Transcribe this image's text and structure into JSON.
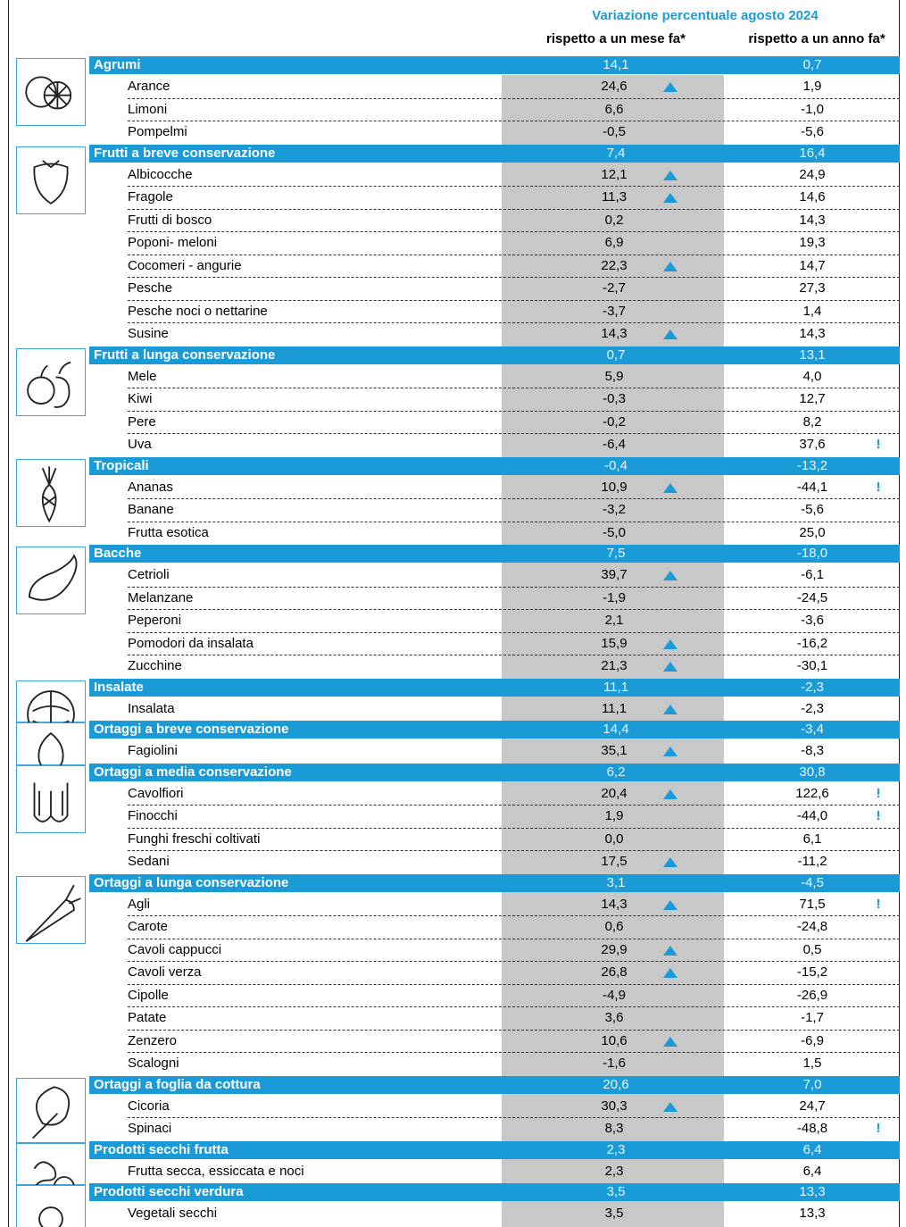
{
  "header": {
    "title": "Variazione percentuale agosto 2024",
    "col_month": "rispetto a un mese fa*",
    "col_year": "rispetto a un anno fa*"
  },
  "groups": [
    {
      "name": "Agrumi",
      "month": "14,1",
      "year": "0,7",
      "items": [
        {
          "name": "Arance",
          "month": "24,6",
          "up": true,
          "year": "1,9"
        },
        {
          "name": "Limoni",
          "month": "6,6",
          "year": "-1,0"
        },
        {
          "name": "Pompelmi",
          "month": "-0,5",
          "year": "-5,6"
        }
      ]
    },
    {
      "name": "Frutti a breve conservazione",
      "month": "7,4",
      "year": "16,4",
      "items": [
        {
          "name": "Albicocche",
          "month": "12,1",
          "up": true,
          "year": "24,9"
        },
        {
          "name": "Fragole",
          "month": "11,3",
          "up": true,
          "year": "14,6"
        },
        {
          "name": "Frutti di bosco",
          "month": "0,2",
          "year": "14,3"
        },
        {
          "name": "Poponi- meloni",
          "month": "6,9",
          "year": "19,3"
        },
        {
          "name": "Cocomeri - angurie",
          "month": "22,3",
          "up": true,
          "year": "14,7"
        },
        {
          "name": "Pesche",
          "month": "-2,7",
          "year": "27,3"
        },
        {
          "name": "Pesche noci o nettarine",
          "month": "-3,7",
          "year": "1,4"
        },
        {
          "name": "Susine",
          "month": "14,3",
          "up": true,
          "year": "14,3"
        }
      ]
    },
    {
      "name": "Frutti a lunga conservazione",
      "month": "0,7",
      "year": "13,1",
      "items": [
        {
          "name": "Mele",
          "month": "5,9",
          "year": "4,0"
        },
        {
          "name": "Kiwi",
          "month": "-0,3",
          "year": "12,7"
        },
        {
          "name": "Pere",
          "month": "-0,2",
          "year": "8,2"
        },
        {
          "name": "Uva",
          "month": "-6,4",
          "year": "37,6",
          "alert": "!"
        }
      ]
    },
    {
      "name": "Tropicali",
      "month": "-0,4",
      "year": "-13,2",
      "items": [
        {
          "name": "Ananas",
          "month": "10,9",
          "up": true,
          "year": "-44,1",
          "alert": "!"
        },
        {
          "name": "Banane",
          "month": "-3,2",
          "year": "-5,6"
        },
        {
          "name": "Frutta esotica",
          "month": "-5,0",
          "year": "25,0"
        }
      ]
    },
    {
      "name": "Bacche",
      "month": "7,5",
      "year": "-18,0",
      "items": [
        {
          "name": "Cetrioli",
          "month": "39,7",
          "up": true,
          "year": "-6,1"
        },
        {
          "name": "Melanzane",
          "month": "-1,9",
          "year": "-24,5"
        },
        {
          "name": "Peperoni",
          "month": "2,1",
          "year": "-3,6"
        },
        {
          "name": "Pomodori da insalata",
          "month": "15,9",
          "up": true,
          "year": "-16,2"
        },
        {
          "name": "Zucchine",
          "month": "21,3",
          "up": true,
          "year": "-30,1"
        }
      ]
    },
    {
      "name": "Insalate",
      "month": "11,1",
      "year": "-2,3",
      "items": [
        {
          "name": "Insalata",
          "month": "11,1",
          "up": true,
          "year": "-2,3"
        }
      ]
    },
    {
      "name": "Ortaggi a breve conservazione",
      "month": "14,4",
      "year": "-3,4",
      "items": [
        {
          "name": "Fagiolini",
          "month": "35,1",
          "up": true,
          "year": "-8,3"
        }
      ]
    },
    {
      "name": "Ortaggi a media conservazione",
      "month": "6,2",
      "year": "30,8",
      "items": [
        {
          "name": "Cavolfiori",
          "month": "20,4",
          "up": true,
          "year": "122,6",
          "alert": "!"
        },
        {
          "name": "Finocchi",
          "month": "1,9",
          "year": "-44,0",
          "alert": "!"
        },
        {
          "name": "Funghi freschi coltivati",
          "month": "0,0",
          "year": "6,1"
        },
        {
          "name": "Sedani",
          "month": "17,5",
          "up": true,
          "year": "-11,2"
        }
      ]
    },
    {
      "name": "Ortaggi a lunga conservazione",
      "month": "3,1",
      "year": "-4,5",
      "items": [
        {
          "name": "Agli",
          "month": "14,3",
          "up": true,
          "year": "71,5",
          "alert": "!"
        },
        {
          "name": "Carote",
          "month": "0,6",
          "year": "-24,8"
        },
        {
          "name": "Cavoli cappucci",
          "month": "29,9",
          "up": true,
          "year": "0,5"
        },
        {
          "name": "Cavoli verza",
          "month": "26,8",
          "up": true,
          "year": "-15,2"
        },
        {
          "name": "Cipolle",
          "month": "-4,9",
          "year": "-26,9"
        },
        {
          "name": "Patate",
          "month": "3,6",
          "year": "-1,7"
        },
        {
          "name": "Zenzero",
          "month": "10,6",
          "up": true,
          "year": "-6,9"
        },
        {
          "name": "Scalogni",
          "month": "-1,6",
          "year": "1,5"
        }
      ]
    },
    {
      "name": "Ortaggi a foglia da cottura",
      "month": "20,6",
      "year": "7,0",
      "items": [
        {
          "name": "Cicoria",
          "month": "30,3",
          "up": true,
          "year": "24,7"
        },
        {
          "name": "Spinaci",
          "month": "8,3",
          "year": "-48,8",
          "alert": "!"
        }
      ]
    },
    {
      "name": "Prodotti secchi frutta",
      "month": "2,3",
      "year": "6,4",
      "items": [
        {
          "name": "Frutta secca, essiccata e noci",
          "month": "2,3",
          "year": "6,4"
        }
      ]
    },
    {
      "name": "Prodotti secchi verdura",
      "month": "3,5",
      "year": "13,3",
      "items": [
        {
          "name": "Vegetali secchi",
          "month": "3,5",
          "year": "13,3"
        }
      ]
    }
  ]
}
